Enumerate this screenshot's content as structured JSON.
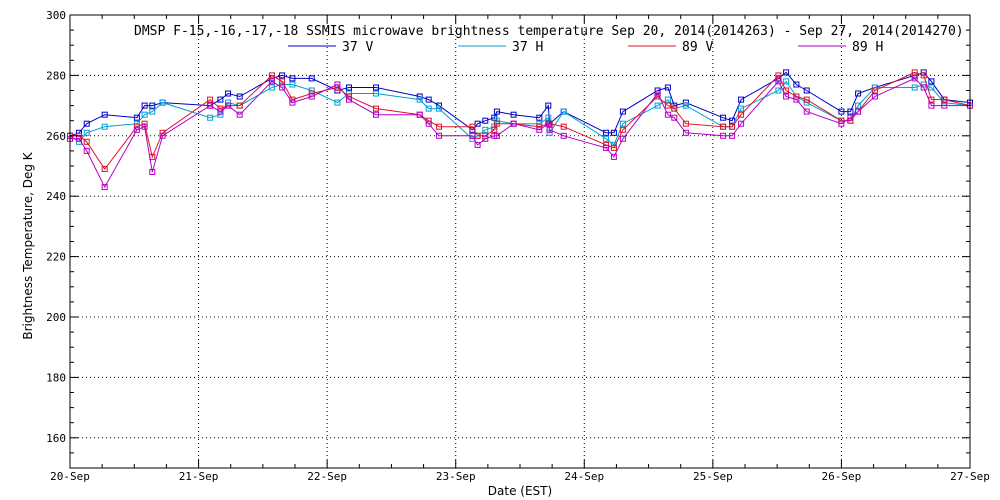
{
  "chart_data": {
    "type": "line",
    "title": "DMSP F-15,-16,-17,-18 SSMIS microwave brightness temperature Sep 20, 2014(2014263) - Sep 27, 2014(2014270)",
    "xlabel": "Date (EST)",
    "ylabel": "Brightness Temperature, Deg K",
    "xlim": [
      0,
      7
    ],
    "ylim": [
      150,
      300
    ],
    "grid": true,
    "x_tick_labels": [
      "20-Sep",
      "21-Sep",
      "22-Sep",
      "23-Sep",
      "24-Sep",
      "25-Sep",
      "26-Sep",
      "27-Sep"
    ],
    "y_ticks": [
      160,
      180,
      200,
      220,
      240,
      260,
      280,
      300
    ],
    "legend_position": "top-center",
    "x": [
      0.0,
      0.07,
      0.13,
      0.27,
      0.52,
      0.58,
      0.64,
      0.72,
      1.09,
      1.17,
      1.23,
      1.32,
      1.57,
      1.65,
      1.73,
      1.88,
      2.08,
      2.17,
      2.38,
      2.72,
      2.79,
      2.87,
      3.13,
      3.17,
      3.23,
      3.3,
      3.32,
      3.45,
      3.65,
      3.72,
      3.73,
      3.84,
      4.17,
      4.23,
      4.3,
      4.57,
      4.65,
      4.7,
      4.79,
      5.08,
      5.15,
      5.22,
      5.51,
      5.57,
      5.65,
      5.73,
      6.0,
      6.07,
      6.13,
      6.26,
      6.57,
      6.64,
      6.7,
      6.8,
      7.0
    ],
    "series": [
      {
        "name": "37 V",
        "color": "#0000c8",
        "values": [
          260,
          261,
          264,
          267,
          266,
          270,
          270,
          271,
          270,
          272,
          274,
          273,
          279,
          280,
          279,
          279,
          275,
          276,
          276,
          273,
          272,
          270,
          262,
          264,
          265,
          266,
          268,
          267,
          266,
          270,
          264,
          268,
          261,
          261,
          268,
          275,
          276,
          270,
          271,
          266,
          265,
          272,
          279,
          281,
          277,
          275,
          268,
          268,
          274,
          276,
          280,
          281,
          278,
          272,
          271
        ]
      },
      {
        "name": "37 H",
        "color": "#00a0d2",
        "values": [
          260,
          258,
          261,
          263,
          264,
          267,
          268,
          271,
          266,
          267,
          271,
          270,
          276,
          277,
          277,
          275,
          271,
          274,
          274,
          272,
          269,
          269,
          259,
          260,
          262,
          263,
          265,
          264,
          264,
          266,
          261,
          268,
          259,
          257,
          264,
          270,
          272,
          269,
          270,
          263,
          263,
          269,
          275,
          278,
          273,
          271,
          265,
          265,
          270,
          276,
          276,
          277,
          276,
          271,
          270
        ]
      },
      {
        "name": "89 V",
        "color": "#dc1428",
        "values": [
          260,
          260,
          258,
          249,
          263,
          264,
          253,
          261,
          272,
          269,
          270,
          270,
          280,
          278,
          272,
          274,
          276,
          273,
          269,
          267,
          265,
          263,
          263,
          260,
          260,
          262,
          264,
          264,
          263,
          264,
          264,
          263,
          257,
          256,
          262,
          273,
          270,
          269,
          264,
          263,
          263,
          267,
          280,
          275,
          273,
          272,
          265,
          265,
          268,
          275,
          281,
          280,
          272,
          272,
          270
        ]
      },
      {
        "name": "89 H",
        "color": "#b400c8",
        "values": [
          259,
          259,
          255,
          243,
          262,
          263,
          248,
          260,
          270,
          268,
          270,
          267,
          278,
          276,
          271,
          273,
          277,
          272,
          267,
          267,
          264,
          260,
          260,
          257,
          259,
          260,
          260,
          264,
          262,
          264,
          262,
          260,
          256,
          253,
          259,
          274,
          267,
          266,
          261,
          260,
          260,
          264,
          278,
          273,
          272,
          268,
          264,
          266,
          268,
          273,
          279,
          276,
          270,
          270,
          270
        ]
      }
    ]
  }
}
